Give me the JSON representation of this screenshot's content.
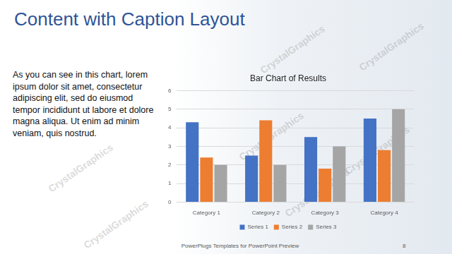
{
  "slide": {
    "title": "Content with Caption Layout",
    "caption": "As you can see in this chart, lorem ipsum dolor sit amet, consectetur adipiscing elit, sed do eiusmod tempor incididunt ut labore et dolore magna aliqua. Ut enim ad minim veniam, quis nostrud.",
    "footer": "PowerPlugs Templates for PowerPoint Preview",
    "page_number": 8,
    "watermark": "CrystalGraphics"
  },
  "chart_data": {
    "type": "bar",
    "title": "Bar Chart of Results",
    "categories": [
      "Category 1",
      "Category 2",
      "Category 3",
      "Category 4"
    ],
    "series": [
      {
        "name": "Series 1",
        "color": "#4472c4",
        "values": [
          4.3,
          2.5,
          3.5,
          4.5
        ]
      },
      {
        "name": "Series 2",
        "color": "#ed7d31",
        "values": [
          2.4,
          4.4,
          1.8,
          2.8
        ]
      },
      {
        "name": "Series 3",
        "color": "#a5a5a5",
        "values": [
          2,
          2,
          3,
          5
        ]
      }
    ],
    "ylim": [
      0,
      6
    ],
    "yticks": [
      0,
      1,
      2,
      3,
      4,
      5,
      6
    ],
    "grid": true,
    "legend": "bottom"
  }
}
